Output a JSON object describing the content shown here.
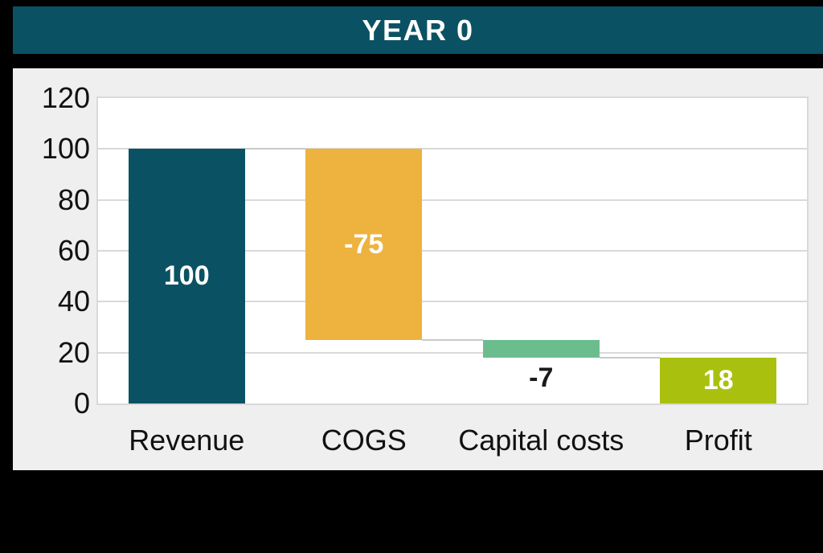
{
  "header": {
    "title": "YEAR 0",
    "background_color": "#0a5263",
    "text_color": "#ffffff"
  },
  "chart_data": {
    "type": "bar",
    "subtype": "waterfall",
    "title": "YEAR 0",
    "categories": [
      "Revenue",
      "COGS",
      "Capital costs",
      "Profit"
    ],
    "bars": [
      {
        "category": "Revenue",
        "label": "100",
        "value": 100,
        "start": 0,
        "end": 100,
        "color": "#0a5263",
        "label_color": "#ffffff",
        "label_position": "inside"
      },
      {
        "category": "COGS",
        "label": "-75",
        "value": -75,
        "start": 100,
        "end": 25,
        "color": "#eeb23e",
        "label_color": "#ffffff",
        "label_position": "inside"
      },
      {
        "category": "Capital costs",
        "label": "-7",
        "value": -7,
        "start": 25,
        "end": 18,
        "color": "#6cbd8e",
        "label_color": "#1a1a1a",
        "label_position": "below"
      },
      {
        "category": "Profit",
        "label": "18",
        "value": 18,
        "start": 0,
        "end": 18,
        "color": "#a9c10e",
        "label_color": "#ffffff",
        "label_position": "inside"
      }
    ],
    "xlabel": "",
    "ylabel": "",
    "ylim": [
      0,
      120
    ],
    "yticks": [
      0,
      20,
      40,
      60,
      80,
      100,
      120
    ],
    "grid": "horizontal",
    "connectors": true,
    "legend": "none",
    "colors": {
      "panel_background": "#efefef",
      "plot_background": "#ffffff",
      "gridline": "#d9d9d9",
      "connector": "#c9c9c9",
      "axis_text": "#111111",
      "page_background": "#000000"
    }
  }
}
